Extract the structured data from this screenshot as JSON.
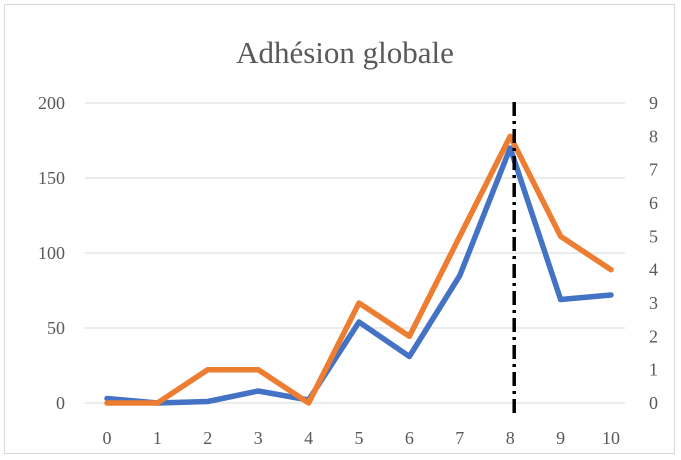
{
  "chart_data": {
    "type": "line",
    "title": "Adhésion globale",
    "x": [
      0,
      1,
      2,
      3,
      4,
      5,
      6,
      7,
      8,
      9,
      10
    ],
    "x_tick_labels": [
      "0",
      "1",
      "2",
      "3",
      "4",
      "5",
      "6",
      "7",
      "8",
      "9",
      "10"
    ],
    "series": [
      {
        "axis": "left",
        "color": "#4472C4",
        "values": [
          3,
          0,
          1,
          8,
          2,
          54,
          31,
          85,
          170,
          69,
          72
        ]
      },
      {
        "axis": "right",
        "color": "#ED7D31",
        "values": [
          0,
          0,
          1,
          1,
          0,
          3,
          2,
          5,
          8,
          5,
          4
        ]
      }
    ],
    "y_left": {
      "min": 0,
      "max": 200,
      "ticks": [
        "0",
        "50",
        "100",
        "150",
        "200"
      ]
    },
    "y_right": {
      "min": 0,
      "max": 9,
      "ticks": [
        "0",
        "1",
        "2",
        "3",
        "4",
        "5",
        "6",
        "7",
        "8",
        "9"
      ]
    },
    "reference_line": {
      "x": 8,
      "style": "dash-dot",
      "color": "#000000"
    },
    "grid": "horizontal",
    "legend": "none",
    "xlabel": "",
    "ylabel": ""
  }
}
